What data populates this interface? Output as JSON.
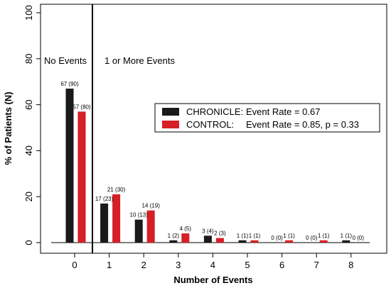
{
  "chart_data": {
    "type": "bar",
    "xlabel": "Number of Events",
    "ylabel": "% of Patients (N)",
    "ylim": [
      0,
      100
    ],
    "yticks": [
      "0",
      "20",
      "40",
      "60",
      "80",
      "100"
    ],
    "categories": [
      "0",
      "1",
      "2",
      "3",
      "4",
      "5",
      "6",
      "7",
      "8"
    ],
    "series": [
      {
        "name": "CHRONICLE",
        "color": "#1a1a1a",
        "values": [
          67,
          17,
          10,
          1,
          3,
          1,
          0,
          0,
          1
        ],
        "labels": [
          "67 (90)",
          "17 (23)",
          "10 (13)",
          "1 (2)",
          "3 (4)",
          "1 (1)",
          "0 (0)",
          "0 (0)",
          "1 (1)"
        ]
      },
      {
        "name": "CONTROL",
        "color": "#d61f26",
        "values": [
          57,
          21,
          14,
          4,
          2,
          1,
          1,
          1,
          0
        ],
        "labels": [
          "57 (80)",
          "21 (30)",
          "14 (19)",
          "4 (5)",
          "2 (3)",
          "1 (1)",
          "1 (1)",
          "1 (1)",
          "0 (0)"
        ]
      }
    ],
    "region_labels": [
      "No Events",
      "1 or More Events"
    ],
    "legend": {
      "placement": "center-right",
      "entries": [
        {
          "name": "CHRONICLE:",
          "text": "Event Rate = 0.67"
        },
        {
          "name": "CONTROL:",
          "text": "Event Rate = 0.85, p = 0.33"
        }
      ]
    },
    "grid": false
  }
}
